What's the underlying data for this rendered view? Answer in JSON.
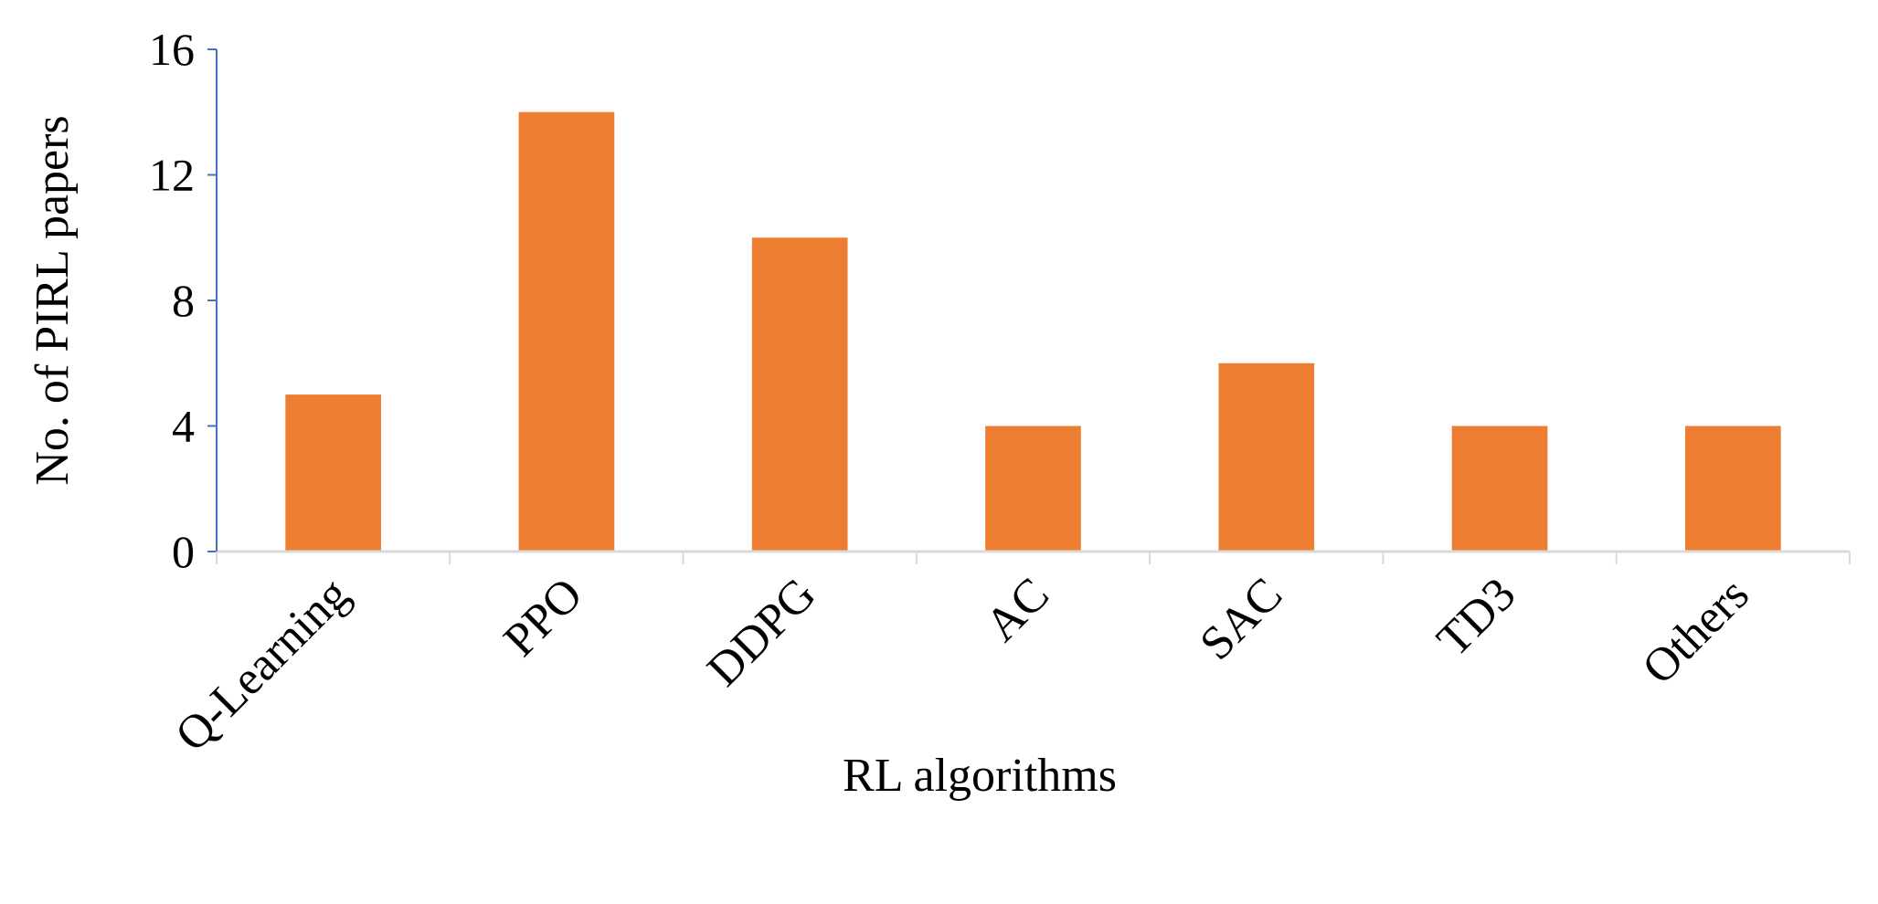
{
  "chart_data": {
    "type": "bar",
    "categories": [
      "Q-Learning",
      "PPO",
      "DDPG",
      "AC",
      "SAC",
      "TD3",
      "Others"
    ],
    "values": [
      5,
      14,
      10,
      4,
      6,
      4,
      4
    ],
    "color": "#ed7d31",
    "xlabel": "RL algorithms",
    "ylabel": "No. of  PIRL papers",
    "ylim": [
      0,
      16
    ],
    "yticks": [
      0,
      4,
      8,
      12,
      16
    ],
    "grid": false
  }
}
